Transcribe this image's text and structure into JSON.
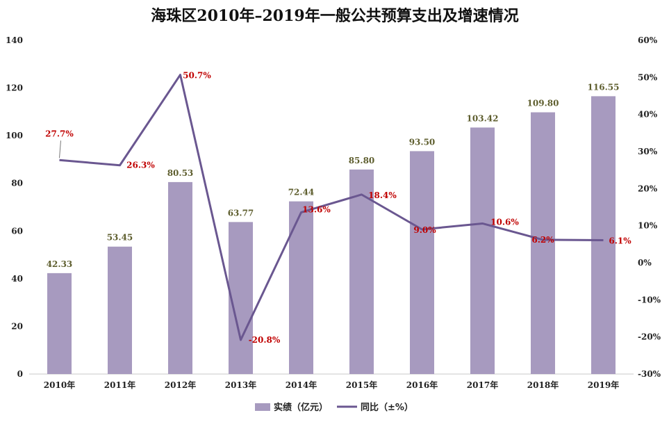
{
  "chart_data": {
    "type": "bar",
    "title": "海珠区2010年–2019年一般公共预算支出及增速情况",
    "categories": [
      "2010年",
      "2011年",
      "2012年",
      "2013年",
      "2014年",
      "2015年",
      "2016年",
      "2017年",
      "2018年",
      "2019年"
    ],
    "series": [
      {
        "name": "实绩（亿元）",
        "type": "bar",
        "axis": "left",
        "color": "#a79abf",
        "values": [
          42.33,
          53.45,
          80.53,
          63.77,
          72.44,
          85.8,
          93.5,
          103.42,
          109.8,
          116.55
        ],
        "labels": [
          "42.33",
          "53.45",
          "80.53",
          "63.77",
          "72.44",
          "85.80",
          "93.50",
          "103.42",
          "109.80",
          "116.55"
        ]
      },
      {
        "name": "同比（±%）",
        "type": "line",
        "axis": "right",
        "color": "#6a5790",
        "values": [
          27.7,
          26.3,
          50.7,
          -20.8,
          13.6,
          18.4,
          9.0,
          10.6,
          6.2,
          6.1
        ],
        "labels": [
          "27.7%",
          "26.3%",
          "50.7%",
          "-20.8%",
          "13.6%",
          "18.4%",
          "9.0%",
          "10.6%",
          "6.2%",
          "6.1%"
        ]
      }
    ],
    "ylim_left": [
      0,
      140
    ],
    "yticks_left": [
      "0",
      "20",
      "40",
      "60",
      "80",
      "100",
      "120",
      "140"
    ],
    "ylim_right": [
      -30,
      60
    ],
    "yticks_right": [
      "-30%",
      "-20%",
      "-10%",
      "0%",
      "10%",
      "20%",
      "30%",
      "40%",
      "50%",
      "60%"
    ],
    "grid": false,
    "legend_position": "bottom"
  }
}
